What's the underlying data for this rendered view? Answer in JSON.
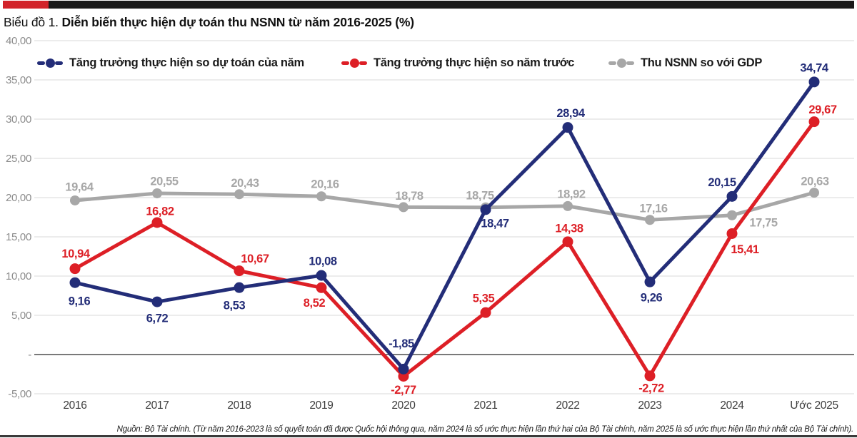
{
  "header": {
    "title_prefix": "Biểu đồ 1.",
    "title_main": "Diễn biến thực hiện dự toán thu NSNN từ năm 2016-2025 (%)"
  },
  "colors": {
    "navy": "#232D78",
    "red": "#DD1F26",
    "gray": "#A7A7A7",
    "grid": "#D9D9D9",
    "zero_axis": "#4D4D4D",
    "y_tick_text": "#8C8C8C",
    "x_tick_text": "#3D3D3D",
    "topbar_black": "#1A1A1A",
    "topbar_red": "#D2232A",
    "bottom_rule": "#3A3A3A"
  },
  "chart_data": {
    "type": "line",
    "title": "Biểu đồ 1. Diễn biến thực hiện dự toán thu NSNN từ năm 2016-2025 (%)",
    "categories": [
      "2016",
      "2017",
      "2018",
      "2019",
      "2020",
      "2021",
      "2022",
      "2023",
      "2024",
      "Ước 2025"
    ],
    "series": [
      {
        "name": "Tăng trưởng thực hiện so dự toán của năm",
        "color_key": "navy",
        "values": [
          9.16,
          6.72,
          8.53,
          10.08,
          -1.85,
          18.47,
          28.94,
          9.26,
          20.15,
          34.74
        ],
        "point_labels": [
          "9,16",
          "6,72",
          "8,53",
          "10,08",
          "-1,85",
          "18,47",
          "28,94",
          "9,26",
          "20,15",
          "34,74"
        ]
      },
      {
        "name": "Tăng trưởng thực hiện so năm trước",
        "color_key": "red",
        "values": [
          10.94,
          16.82,
          10.67,
          8.52,
          -2.77,
          5.35,
          14.38,
          -2.72,
          15.41,
          29.67
        ],
        "point_labels": [
          "10,94",
          "16,82",
          "10,67",
          "8,52",
          "-2,77",
          "5,35",
          "14,38",
          "-2,72",
          "15,41",
          "29,67"
        ]
      },
      {
        "name": "Thu NSNN so với GDP",
        "color_key": "gray",
        "values": [
          19.64,
          20.55,
          20.43,
          20.16,
          18.78,
          18.75,
          18.92,
          17.16,
          17.75,
          20.63
        ],
        "point_labels": [
          "19,64",
          "20,55",
          "20,43",
          "20,16",
          "18,78",
          "18,75",
          "18,92",
          "17,16",
          "17,75",
          "20,63"
        ]
      }
    ],
    "y_ticks": [
      {
        "value": 40,
        "label": "40,00"
      },
      {
        "value": 35,
        "label": "35,00"
      },
      {
        "value": 30,
        "label": "30,00"
      },
      {
        "value": 25,
        "label": "25,00"
      },
      {
        "value": 20,
        "label": "20,00"
      },
      {
        "value": 15,
        "label": "15,00"
      },
      {
        "value": 10,
        "label": "10,00"
      },
      {
        "value": 5,
        "label": "5,00"
      },
      {
        "value": 0,
        "label": "-"
      },
      {
        "value": -5,
        "label": "-5,00"
      }
    ],
    "ylim": [
      -7.7,
      40
    ],
    "grid": true,
    "legend_position": "top"
  },
  "footer": {
    "source": "Nguồn: Bộ Tài chính. (Từ năm 2016-2023 là số quyết toán đã được Quốc hội thông qua, năm 2024 là số ước thực hiện lần thứ hai của Bộ Tài chính, năm 2025 là số ước thực hiện lần thứ nhất của Bộ Tài chính)."
  }
}
